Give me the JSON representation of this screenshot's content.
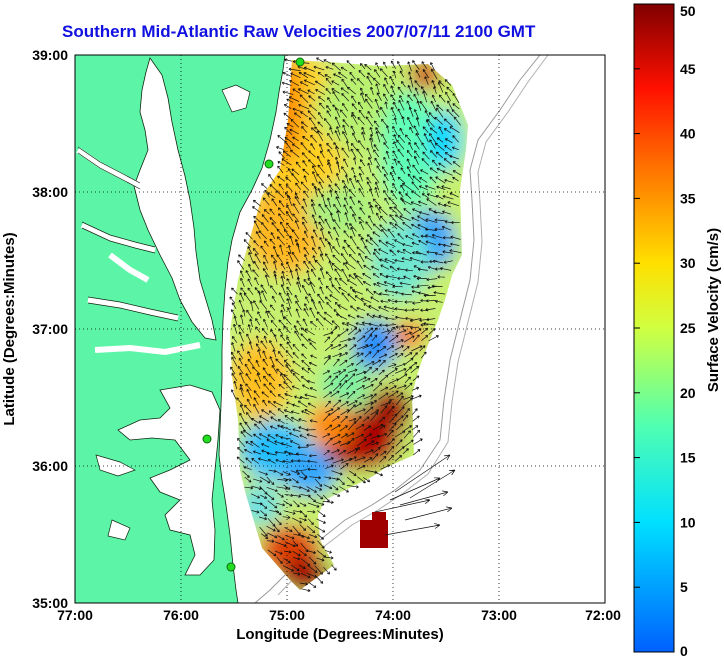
{
  "title": "Southern Mid-Atlantic Raw Velocities 2007/07/11 2100 GMT",
  "x_axis": {
    "label": "Longitude (Degrees:Minutes)",
    "ticks": [
      "77:00",
      "76:00",
      "75:00",
      "74:00",
      "73:00",
      "72:00"
    ]
  },
  "y_axis": {
    "label": "Latitude (Degrees:Minutes)",
    "ticks": [
      "39:00",
      "38:00",
      "37:00",
      "36:00",
      "35:00"
    ]
  },
  "colorbar": {
    "label": "Surface Velocity (cm/s)",
    "ticks": [
      "0",
      "5",
      "10",
      "15",
      "20",
      "25",
      "30",
      "35",
      "40",
      "45",
      "50"
    ],
    "min": 0,
    "max": 50
  },
  "colors": {
    "land": "#5cf5a8",
    "title": "#1010e0",
    "station": "#22dd22"
  },
  "stations": [
    "station-1",
    "station-2",
    "station-3",
    "station-4"
  ]
}
